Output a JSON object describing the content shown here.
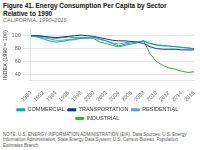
{
  "chart_data": {
    "type": "line",
    "title": [
      "Figure 41. Energy Consumption Per Capita by Sector",
      "Relative to 1990"
    ],
    "subtitle": "CALIFORNIA, 1990–2016",
    "ylabel": "INDEX (1990 = 100)",
    "source": "NOTE: U.S. ENERGY INFORMATION ADMINISTRATION (EIA). Data Sources: U.S. Energy Information Administration, State Energy Data System; U.S. Census Bureau, Population Estimates Branch.",
    "x": [
      1990,
      1991,
      1992,
      1993,
      1994,
      1995,
      1996,
      1997,
      1998,
      1999,
      2000,
      2001,
      2002,
      2003,
      2004,
      2005,
      2006,
      2007,
      2008,
      2009,
      2010,
      2011,
      2012,
      2013,
      2014,
      2015,
      2016
    ],
    "series": [
      {
        "name": "COMMERCIAL",
        "color": "#00aaaa",
        "values": [
          100,
          98,
          95,
          92,
          90,
          91,
          93,
          94,
          96,
          97,
          98,
          95,
          92,
          88,
          84,
          87,
          89,
          90,
          92,
          88,
          86,
          85,
          84,
          83,
          82,
          81,
          80
        ]
      },
      {
        "name": "TRANSPORTATION",
        "color": "#003399",
        "values": [
          100,
          100,
          99,
          98,
          97,
          98,
          99,
          100,
          101,
          100,
          99,
          97,
          95,
          93,
          92,
          92,
          91,
          90,
          88,
          83,
          80,
          79,
          79,
          79,
          78,
          78,
          78
        ]
      },
      {
        "name": "RESIDENTIAL",
        "color": "#6699cc",
        "values": [
          100,
          99,
          97,
          95,
          93,
          93,
          94,
          95,
          96,
          96,
          97,
          94,
          92,
          89,
          87,
          89,
          91,
          90,
          92,
          88,
          85,
          84,
          84,
          83,
          82,
          81,
          80
        ]
      },
      {
        "name": "INDUSTRIAL",
        "color": "#33aa44",
        "values": [
          100,
          100,
          99,
          97,
          96,
          97,
          98,
          97,
          97,
          97,
          96,
          90,
          88,
          85,
          83,
          85,
          87,
          89,
          92,
          72,
          60,
          54,
          50,
          48,
          45,
          43,
          44
        ]
      }
    ],
    "xlim": [
      1990,
      2016
    ],
    "xticks": [
      1990,
      1992,
      1994,
      1996,
      1998,
      2000,
      2002,
      2004,
      2006,
      2008,
      2010,
      2012,
      2014,
      2016
    ],
    "ylim": [
      30,
      110
    ],
    "yticks": [
      40,
      60,
      80,
      100
    ],
    "grid": true,
    "legend": "bottom"
  }
}
